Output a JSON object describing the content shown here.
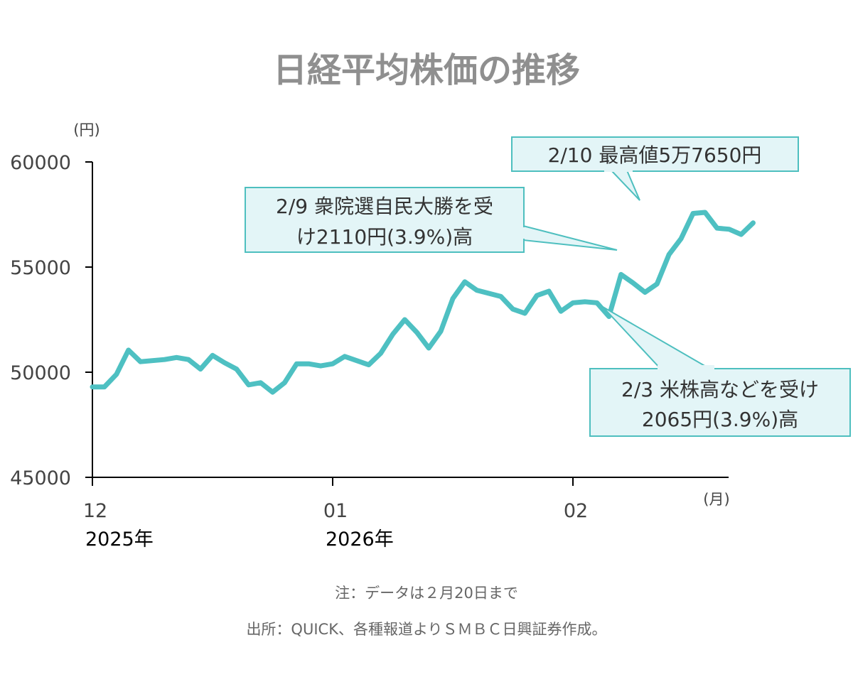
{
  "chart_data": {
    "type": "line",
    "title": "日経平均株価の推移",
    "ylabel": "(円)",
    "xlabel": "(月)",
    "ylim": [
      45000,
      60000
    ],
    "yticks": [
      "45000",
      "50000",
      "55000",
      "60000"
    ],
    "xticks": [
      {
        "month": "12",
        "year": "2025年",
        "pos": 0
      },
      {
        "month": "01",
        "year": "2026年",
        "pos": 20
      },
      {
        "month": "02",
        "year": "",
        "pos": 40
      }
    ],
    "series": [
      {
        "name": "日経平均株価",
        "color": "#4ec0c2",
        "x": [
          0,
          1,
          2,
          3,
          4,
          5,
          6,
          7,
          8,
          9,
          10,
          11,
          12,
          13,
          14,
          15,
          16,
          17,
          18,
          19,
          20,
          21,
          22,
          23,
          24,
          25,
          26,
          27,
          28,
          29,
          30,
          31,
          32,
          33,
          34,
          35,
          36,
          37,
          38,
          39,
          40,
          41,
          42,
          43,
          44,
          45,
          46,
          47,
          48,
          49,
          50,
          51,
          52,
          53,
          54,
          55
        ],
        "values": [
          49300,
          49300,
          49900,
          51050,
          50500,
          50550,
          50600,
          50700,
          50600,
          50150,
          50800,
          50450,
          50150,
          49400,
          49500,
          49050,
          49500,
          50400,
          50400,
          50300,
          50400,
          50750,
          50550,
          50350,
          50900,
          51800,
          52500,
          51900,
          51150,
          51950,
          53500,
          54300,
          53900,
          53750,
          53600,
          53000,
          52800,
          53650,
          53850,
          52900,
          53300,
          53350,
          53300,
          52650,
          54650,
          54250,
          53800,
          54200,
          55600,
          56350,
          57550,
          57600,
          56850,
          56800,
          56550,
          57100
        ]
      }
    ],
    "annotations": [
      {
        "lines": [
          "2/10 最高値5万7650円"
        ],
        "target": 50
      },
      {
        "lines": [
          "2/9 衆院選自民大勝を受",
          "け2110円(3.9%)高"
        ],
        "target": 48
      },
      {
        "lines": [
          "2/3 米株高などを受け",
          "2065円(3.9%)高"
        ],
        "target": 43
      }
    ]
  },
  "notes": {
    "note1": "注：データは２月20日まで",
    "note2": "出所：QUICK、各種報道よりＳＭＢＣ日興証券作成。"
  }
}
